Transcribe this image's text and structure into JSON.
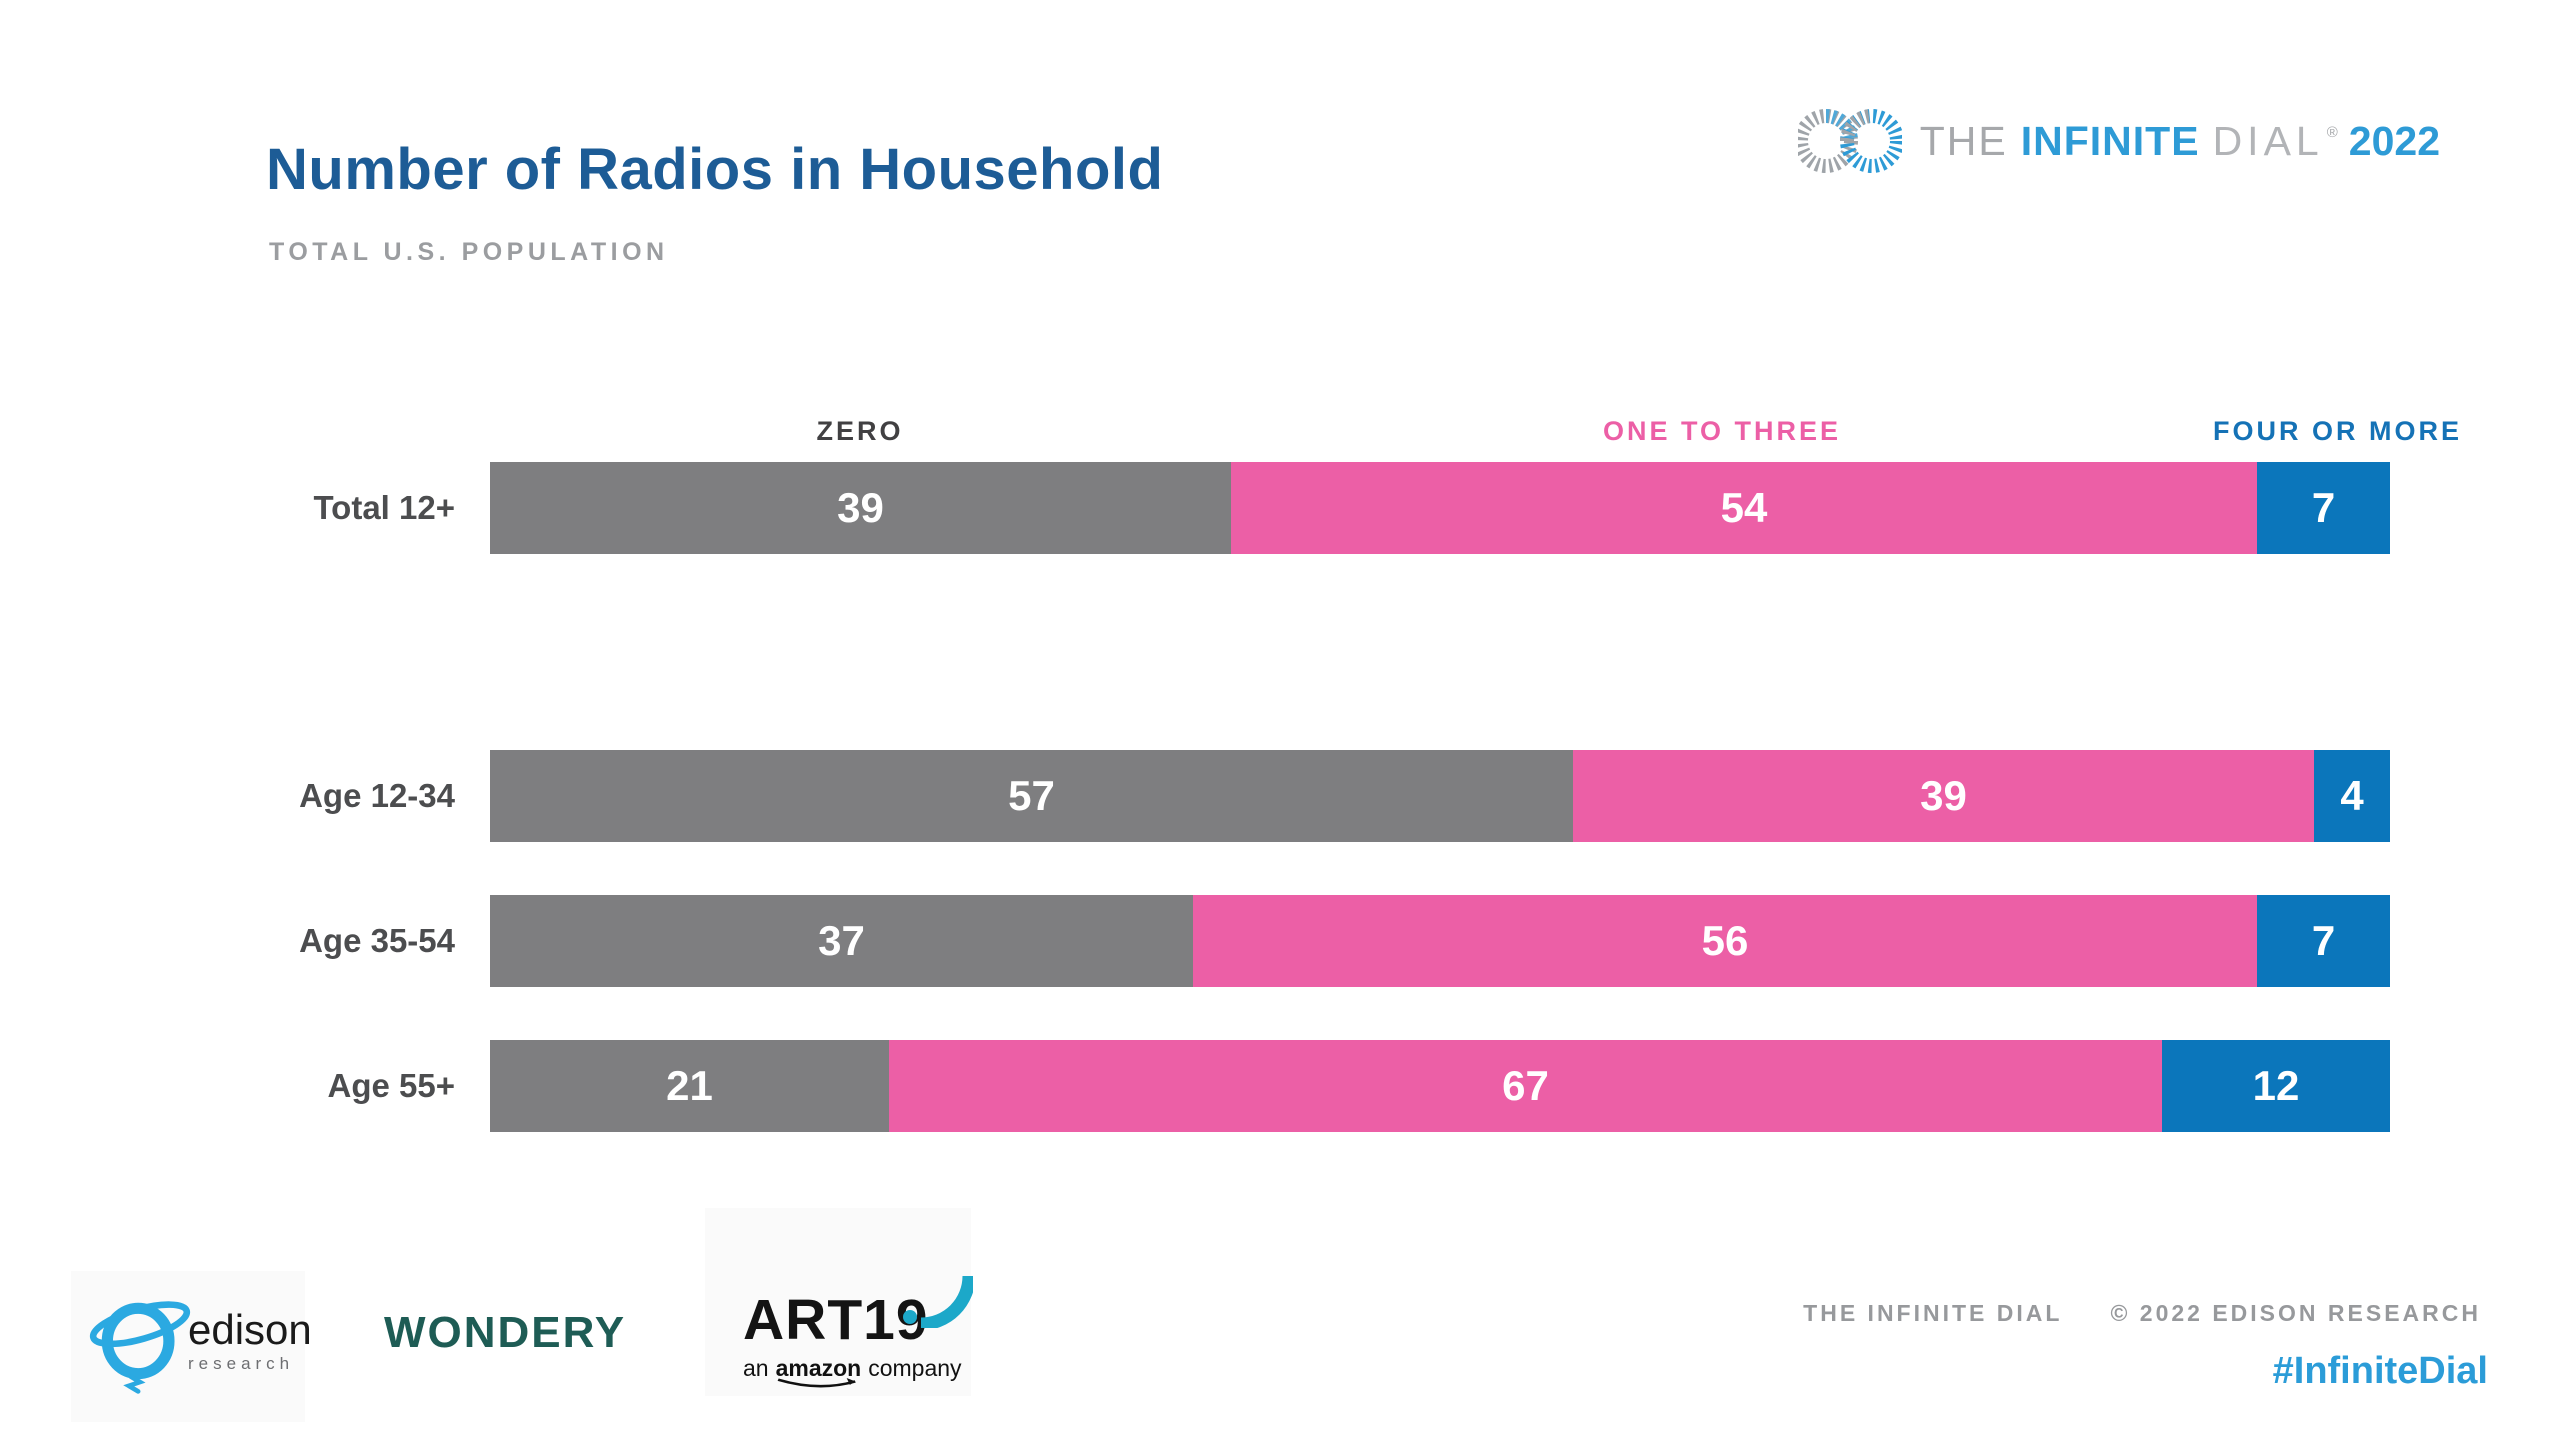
{
  "header": {
    "title": "Number of Radios in Household",
    "subtitle": "TOTAL U.S. POPULATION"
  },
  "brand_logo": {
    "the": "THE",
    "infinite": "INFINITE",
    "dial": "DIAL",
    "reg": "®",
    "year": "2022"
  },
  "chart_data": {
    "type": "bar",
    "orientation": "horizontal-stacked",
    "unit": "percent",
    "title": "Number of Radios in Household",
    "subtitle": "TOTAL U.S. POPULATION",
    "categories": [
      "Total 12+",
      "Age 12-34",
      "Age 35-54",
      "Age 55+"
    ],
    "series": [
      {
        "name": "ZERO",
        "color": "#7E7E80",
        "values": [
          39,
          57,
          37,
          21
        ]
      },
      {
        "name": "ONE TO THREE",
        "color": "#EC5FA6",
        "values": [
          54,
          39,
          56,
          67
        ]
      },
      {
        "name": "FOUR OR MORE",
        "color": "#0B76BB",
        "values": [
          7,
          4,
          7,
          12
        ]
      }
    ],
    "xlim": [
      0,
      100
    ],
    "legend_position": "top",
    "grid": false,
    "value_labels": "inside, white, bold"
  },
  "footer": {
    "edison": {
      "name": "edison",
      "sub": "research"
    },
    "wondery": "WONDERY",
    "art19": {
      "name": "ART19",
      "sub_prefix": "an",
      "sub_brand": "amazon",
      "sub_suffix": "company"
    },
    "credit_left": "THE INFINITE DIAL",
    "credit_right": "© 2022 EDISON RESEARCH",
    "hashtag": "#InfiniteDial"
  },
  "colors": {
    "title_blue": "#1D5C96",
    "subtitle_gray": "#9B9DA0",
    "legend_zero": "#414042",
    "legend_four_or_more": "#1572B6",
    "hashtag_blue": "#2B9CD8",
    "wondery_teal": "#1E5C55",
    "brand_blue": "#2E9BD6",
    "brand_gray": "#A6A8AB",
    "edison_blue": "#2BA9E1",
    "art19_teal": "#1CA8C9"
  }
}
